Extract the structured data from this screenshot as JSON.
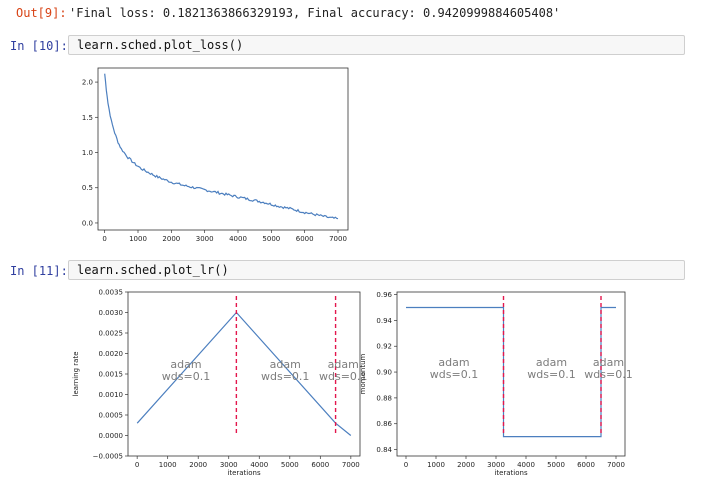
{
  "cells": {
    "out9": {
      "prompt": "Out[9]:",
      "text": "'Final loss: 0.1821363866329193, Final accuracy: 0.9420999884605408'"
    },
    "in10": {
      "prompt": "In [10]:",
      "code": "learn.sched.plot_loss()"
    },
    "in11": {
      "prompt": "In [11]:",
      "code": "learn.sched.plot_lr()"
    }
  },
  "chart_data": [
    {
      "type": "line",
      "title": "",
      "xlabel": "",
      "ylabel": "",
      "xlim": [
        -200,
        7300
      ],
      "ylim": [
        -0.1,
        2.2
      ],
      "xticks": [
        "0",
        "1000",
        "2000",
        "3000",
        "4000",
        "5000",
        "6000",
        "7000"
      ],
      "yticks": [
        "0.0",
        "0.5",
        "1.0",
        "1.5",
        "2.0"
      ],
      "line_color": "#4c7fbf",
      "series": [
        {
          "x": [
            0,
            50,
            100,
            200,
            300,
            400,
            500,
            700,
            900,
            1100,
            1300,
            1600,
            2000,
            2400,
            2800,
            3200,
            3600,
            4000,
            4400,
            4800,
            5200,
            5600,
            6000,
            6400,
            6800,
            7000
          ],
          "y": [
            2.12,
            1.9,
            1.7,
            1.45,
            1.28,
            1.15,
            1.05,
            0.93,
            0.84,
            0.77,
            0.72,
            0.65,
            0.58,
            0.53,
            0.49,
            0.45,
            0.41,
            0.37,
            0.33,
            0.29,
            0.24,
            0.2,
            0.15,
            0.11,
            0.07,
            0.06
          ]
        }
      ]
    },
    {
      "type": "line",
      "title": "",
      "xlabel": "iterations",
      "ylabel": "learning rate",
      "xlim": [
        -300,
        7300
      ],
      "ylim": [
        -0.0005,
        0.0035
      ],
      "xticks": [
        "0",
        "1000",
        "2000",
        "3000",
        "4000",
        "5000",
        "6000",
        "7000"
      ],
      "yticks": [
        "−0.0005",
        "0.0000",
        "0.0005",
        "0.0010",
        "0.0015",
        "0.0020",
        "0.0025",
        "0.0030",
        "0.0035"
      ],
      "line_color": "#4c7fbf",
      "series": [
        {
          "x": [
            0,
            3250,
            6500,
            7000
          ],
          "y": [
            0.0003,
            0.003,
            0.0003,
            0.0
          ]
        }
      ],
      "vlines": {
        "x": [
          3250,
          6500
        ],
        "color": "#e3174d"
      },
      "annotations": [
        {
          "x": 1600,
          "y": 0.0015,
          "lines": [
            "adam",
            "wds=0.1"
          ]
        },
        {
          "x": 4850,
          "y": 0.0015,
          "lines": [
            "adam",
            "wds=0.1"
          ]
        },
        {
          "x": 6750,
          "y": 0.0015,
          "lines": [
            "adam",
            "wds=0.1"
          ]
        }
      ]
    },
    {
      "type": "line",
      "title": "",
      "xlabel": "iterations",
      "ylabel": "momentum",
      "xlim": [
        -300,
        7300
      ],
      "ylim": [
        0.835,
        0.962
      ],
      "xticks": [
        "0",
        "1000",
        "2000",
        "3000",
        "4000",
        "5000",
        "6000",
        "7000"
      ],
      "yticks": [
        "0.84",
        "0.86",
        "0.88",
        "0.90",
        "0.92",
        "0.94",
        "0.96"
      ],
      "line_color": "#4c7fbf",
      "series": [
        {
          "x": [
            0,
            3250,
            3250,
            6500,
            6500,
            7000
          ],
          "y": [
            0.95,
            0.95,
            0.85,
            0.85,
            0.95,
            0.95
          ]
        }
      ],
      "vlines": {
        "x": [
          3250,
          6500
        ],
        "color": "#e3174d"
      },
      "annotations": [
        {
          "x": 1600,
          "y": 0.9,
          "lines": [
            "adam",
            "wds=0.1"
          ]
        },
        {
          "x": 4850,
          "y": 0.9,
          "lines": [
            "adam",
            "wds=0.1"
          ]
        },
        {
          "x": 6750,
          "y": 0.9,
          "lines": [
            "adam",
            "wds=0.1"
          ]
        }
      ]
    }
  ]
}
